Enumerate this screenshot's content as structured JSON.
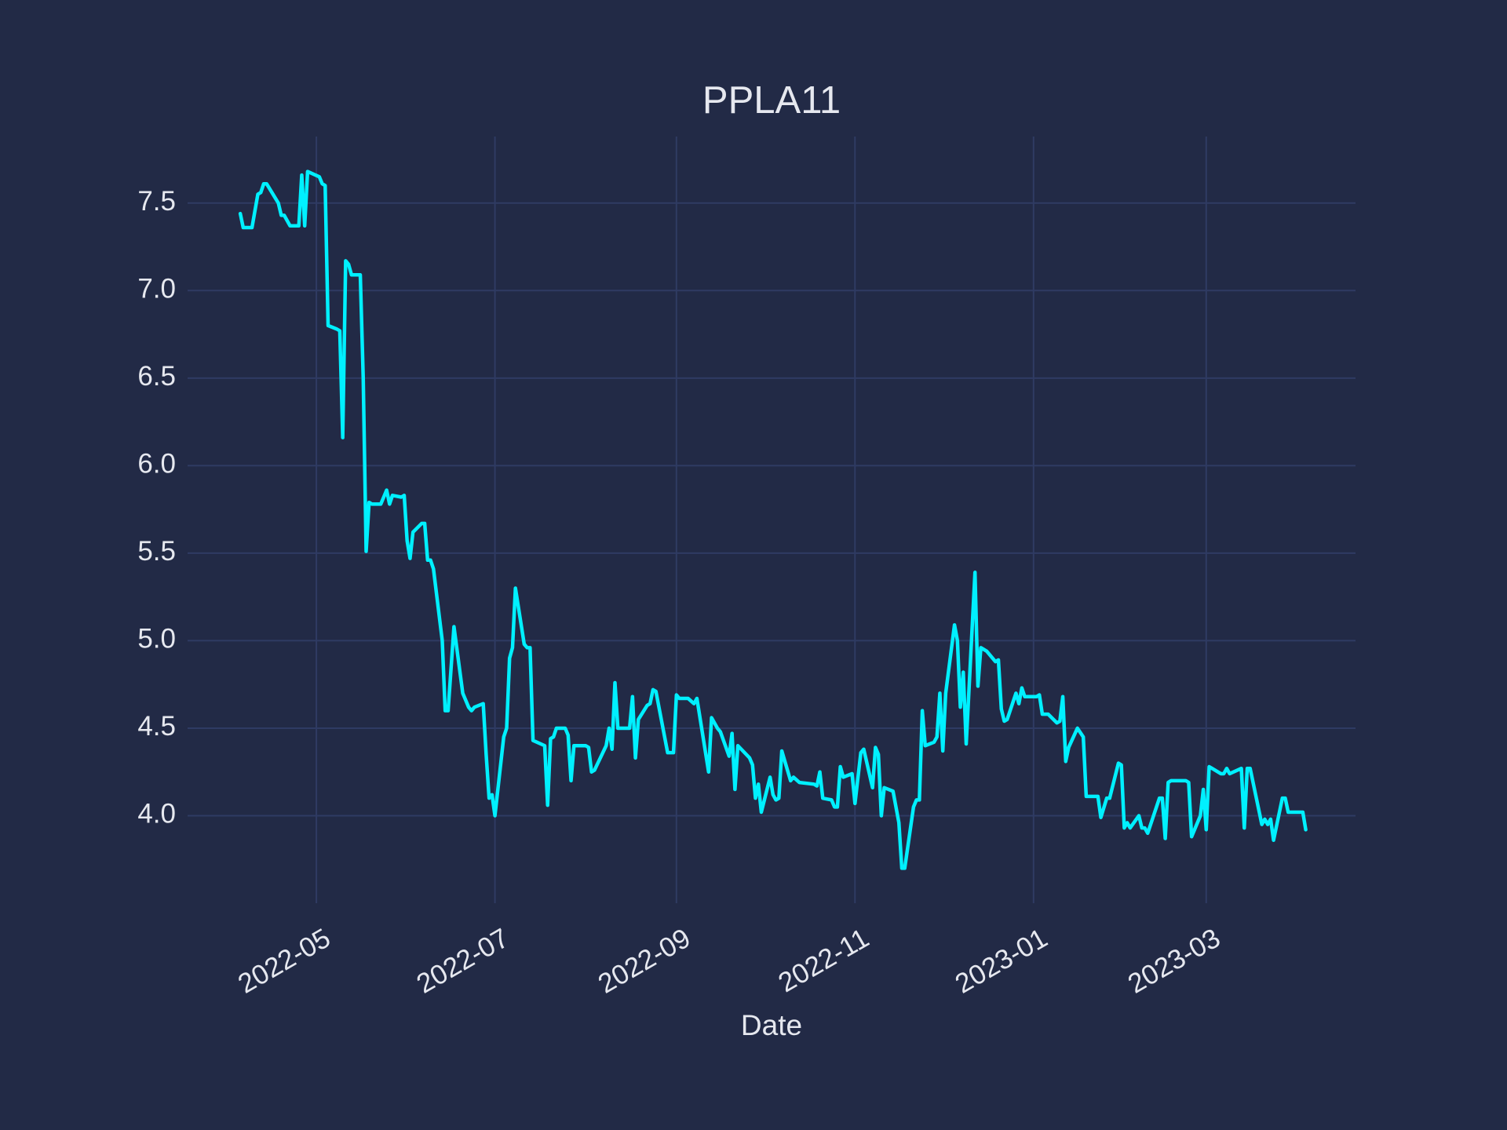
{
  "chart_data": {
    "type": "line",
    "title": "PPLA11",
    "x_label": "Date",
    "color": "#00f0ff",
    "grid": true,
    "xlim": [
      "2022-03-18",
      "2023-04-21"
    ],
    "ylim": [
      3.5,
      7.88
    ],
    "xticks": [
      {
        "value": "2022-05-01",
        "label": "2022-05"
      },
      {
        "value": "2022-07-01",
        "label": "2022-07"
      },
      {
        "value": "2022-09-01",
        "label": "2022-09"
      },
      {
        "value": "2022-11-01",
        "label": "2022-11"
      },
      {
        "value": "2023-01-01",
        "label": "2023-01"
      },
      {
        "value": "2023-03-01",
        "label": "2023-03"
      }
    ],
    "yticks": [
      {
        "value": 4,
        "label": "4.0"
      },
      4.5,
      {
        "value": 5,
        "label": "5.0"
      },
      5.5,
      {
        "value": 6,
        "label": "6.0"
      },
      6.5,
      {
        "value": 7,
        "label": "7.0"
      },
      7.5
    ],
    "x": [
      "2022-04-05",
      "2022-04-06",
      "2022-04-09",
      "2022-04-11",
      "2022-04-12",
      "2022-04-13",
      "2022-04-14",
      "2022-04-18",
      "2022-04-19",
      "2022-04-20",
      "2022-04-22",
      "2022-04-25",
      "2022-04-26",
      "2022-04-27",
      "2022-04-28",
      "2022-05-02",
      "2022-05-03",
      "2022-05-04",
      "2022-05-05",
      "2022-05-08",
      "2022-05-09",
      "2022-05-10",
      "2022-05-11",
      "2022-05-12",
      "2022-05-13",
      "2022-05-16",
      "2022-05-17",
      "2022-05-18",
      "2022-05-19",
      "2022-05-20",
      "2022-05-23",
      "2022-05-25",
      "2022-05-26",
      "2022-05-27",
      "2022-05-30",
      "2022-05-31",
      "2022-06-01",
      "2022-06-02",
      "2022-06-03",
      "2022-06-06",
      "2022-06-07",
      "2022-06-08",
      "2022-06-09",
      "2022-06-10",
      "2022-06-13",
      "2022-06-14",
      "2022-06-15",
      "2022-06-17",
      "2022-06-20",
      "2022-06-22",
      "2022-06-23",
      "2022-06-24",
      "2022-06-27",
      "2022-06-28",
      "2022-06-29",
      "2022-06-30",
      "2022-07-01",
      "2022-07-04",
      "2022-07-05",
      "2022-07-06",
      "2022-07-07",
      "2022-07-08",
      "2022-07-11",
      "2022-07-12",
      "2022-07-13",
      "2022-07-14",
      "2022-07-18",
      "2022-07-19",
      "2022-07-20",
      "2022-07-21",
      "2022-07-22",
      "2022-07-25",
      "2022-07-26",
      "2022-07-27",
      "2022-07-28",
      "2022-08-01",
      "2022-08-02",
      "2022-08-03",
      "2022-08-04",
      "2022-08-08",
      "2022-08-09",
      "2022-08-10",
      "2022-08-11",
      "2022-08-12",
      "2022-08-16",
      "2022-08-17",
      "2022-08-18",
      "2022-08-19",
      "2022-08-22",
      "2022-08-23",
      "2022-08-24",
      "2022-08-25",
      "2022-08-29",
      "2022-08-31",
      "2022-09-01",
      "2022-09-02",
      "2022-09-05",
      "2022-09-07",
      "2022-09-08",
      "2022-09-12",
      "2022-09-13",
      "2022-09-15",
      "2022-09-16",
      "2022-09-19",
      "2022-09-20",
      "2022-09-21",
      "2022-09-22",
      "2022-09-26",
      "2022-09-27",
      "2022-09-28",
      "2022-09-29",
      "2022-09-30",
      "2022-10-03",
      "2022-10-04",
      "2022-10-05",
      "2022-10-06",
      "2022-10-07",
      "2022-10-10",
      "2022-10-11",
      "2022-10-13",
      "2022-10-18",
      "2022-10-19",
      "2022-10-20",
      "2022-10-21",
      "2022-10-24",
      "2022-10-25",
      "2022-10-26",
      "2022-10-27",
      "2022-10-28",
      "2022-10-31",
      "2022-11-01",
      "2022-11-03",
      "2022-11-04",
      "2022-11-07",
      "2022-11-08",
      "2022-11-09",
      "2022-11-10",
      "2022-11-11",
      "2022-11-14",
      "2022-11-16",
      "2022-11-17",
      "2022-11-18",
      "2022-11-21",
      "2022-11-22",
      "2022-11-23",
      "2022-11-24",
      "2022-11-25",
      "2022-11-28",
      "2022-11-29",
      "2022-11-30",
      "2022-12-01",
      "2022-12-02",
      "2022-12-05",
      "2022-12-06",
      "2022-12-07",
      "2022-12-08",
      "2022-12-09",
      "2022-12-12",
      "2022-12-13",
      "2022-12-14",
      "2022-12-15",
      "2022-12-16",
      "2022-12-19",
      "2022-12-20",
      "2022-12-21",
      "2022-12-22",
      "2022-12-23",
      "2022-12-26",
      "2022-12-27",
      "2022-12-28",
      "2022-12-29",
      "2023-01-02",
      "2023-01-03",
      "2023-01-04",
      "2023-01-06",
      "2023-01-09",
      "2023-01-10",
      "2023-01-11",
      "2023-01-12",
      "2023-01-13",
      "2023-01-16",
      "2023-01-18",
      "2023-01-19",
      "2023-01-20",
      "2023-01-23",
      "2023-01-24",
      "2023-01-26",
      "2023-01-27",
      "2023-01-30",
      "2023-01-31",
      "2023-02-01",
      "2023-02-02",
      "2023-02-03",
      "2023-02-06",
      "2023-02-07",
      "2023-02-08",
      "2023-02-09",
      "2023-02-13",
      "2023-02-14",
      "2023-02-15",
      "2023-02-16",
      "2023-02-17",
      "2023-02-22",
      "2023-02-23",
      "2023-02-24",
      "2023-02-27",
      "2023-02-28",
      "2023-03-01",
      "2023-03-02",
      "2023-03-03",
      "2023-03-06",
      "2023-03-07",
      "2023-03-08",
      "2023-03-09",
      "2023-03-13",
      "2023-03-14",
      "2023-03-15",
      "2023-03-16",
      "2023-03-20",
      "2023-03-21",
      "2023-03-22",
      "2023-03-23",
      "2023-03-24",
      "2023-03-27",
      "2023-03-28",
      "2023-03-29",
      "2023-04-03",
      "2023-04-04"
    ],
    "values": [
      7.44,
      7.36,
      7.36,
      7.55,
      7.56,
      7.61,
      7.61,
      7.5,
      7.43,
      7.43,
      7.37,
      7.37,
      7.66,
      7.37,
      7.68,
      7.65,
      7.61,
      7.6,
      6.8,
      6.78,
      6.77,
      6.16,
      7.17,
      7.15,
      7.09,
      7.09,
      6.5,
      5.51,
      5.79,
      5.78,
      5.78,
      5.86,
      5.78,
      5.83,
      5.82,
      5.83,
      5.57,
      5.47,
      5.62,
      5.67,
      5.67,
      5.46,
      5.46,
      5.41,
      5.0,
      4.6,
      4.6,
      5.08,
      4.7,
      4.62,
      4.6,
      4.62,
      4.64,
      4.35,
      4.1,
      4.12,
      4.0,
      4.45,
      4.5,
      4.9,
      4.96,
      5.3,
      4.98,
      4.96,
      4.96,
      4.43,
      4.4,
      4.06,
      4.44,
      4.45,
      4.5,
      4.5,
      4.46,
      4.2,
      4.4,
      4.4,
      4.39,
      4.25,
      4.26,
      4.4,
      4.5,
      4.38,
      4.76,
      4.5,
      4.5,
      4.68,
      4.33,
      4.55,
      4.63,
      4.64,
      4.72,
      4.71,
      4.36,
      4.36,
      4.69,
      4.67,
      4.67,
      4.64,
      4.67,
      4.25,
      4.56,
      4.5,
      4.48,
      4.34,
      4.47,
      4.15,
      4.4,
      4.33,
      4.29,
      4.1,
      4.18,
      4.02,
      4.22,
      4.12,
      4.09,
      4.1,
      4.37,
      4.2,
      4.22,
      4.19,
      4.18,
      4.17,
      4.25,
      4.1,
      4.09,
      4.05,
      4.05,
      4.28,
      4.22,
      4.24,
      4.07,
      4.36,
      4.38,
      4.16,
      4.39,
      4.35,
      4.0,
      4.16,
      4.14,
      3.96,
      3.7,
      3.7,
      4.05,
      4.09,
      4.09,
      4.6,
      4.4,
      4.42,
      4.45,
      4.7,
      4.37,
      4.7,
      5.09,
      5.0,
      4.62,
      4.82,
      4.41,
      5.39,
      4.74,
      4.96,
      4.95,
      4.94,
      4.88,
      4.89,
      4.61,
      4.54,
      4.55,
      4.7,
      4.64,
      4.73,
      4.68,
      4.68,
      4.69,
      4.58,
      4.58,
      4.53,
      4.54,
      4.68,
      4.31,
      4.39,
      4.5,
      4.45,
      4.11,
      4.11,
      4.11,
      3.99,
      4.1,
      4.1,
      4.3,
      4.29,
      3.93,
      3.96,
      3.93,
      4.0,
      3.93,
      3.93,
      3.9,
      4.1,
      4.1,
      3.87,
      4.19,
      4.2,
      4.2,
      4.19,
      3.88,
      4.0,
      4.15,
      3.92,
      4.28,
      4.27,
      4.24,
      4.24,
      4.27,
      4.24,
      4.27,
      3.93,
      4.27,
      4.27,
      3.95,
      3.98,
      3.95,
      3.98,
      3.86,
      4.1,
      4.1,
      4.02,
      4.02,
      3.92
    ]
  }
}
